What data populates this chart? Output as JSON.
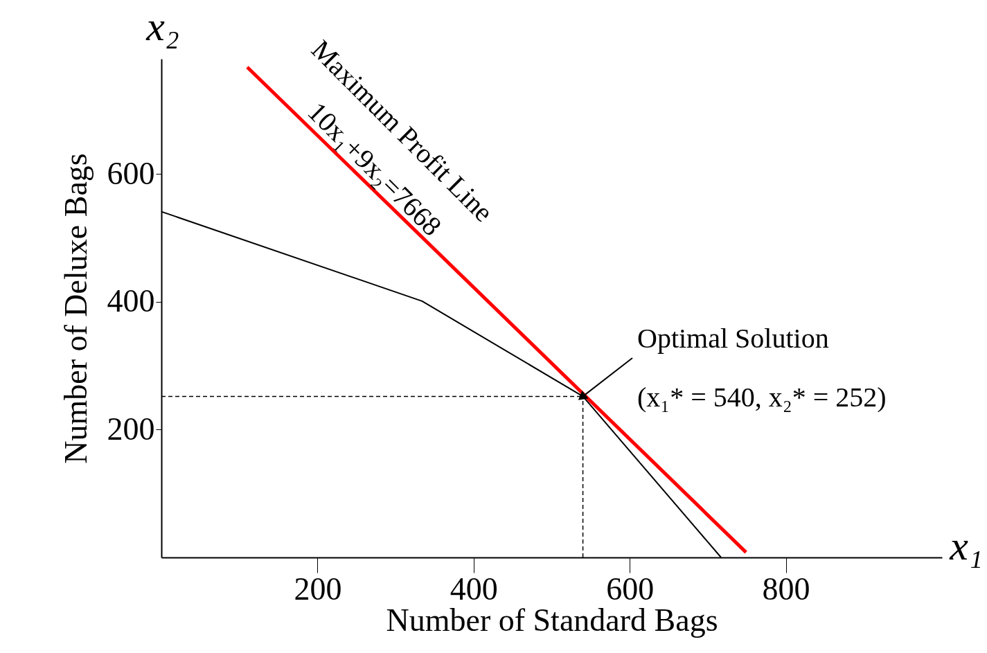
{
  "chart_data": {
    "type": "line",
    "xlabel": "Number of Standard Bags",
    "ylabel": "Number of Deluxe Bags",
    "xlim": [
      0,
      1000
    ],
    "ylim": [
      0,
      780
    ],
    "xticks": [
      200,
      400,
      600,
      800
    ],
    "yticks": [
      200,
      400,
      600
    ],
    "grid": false,
    "marker": "none",
    "series": [
      {
        "color": "#000000",
        "line_style": "solid",
        "x": [
          0,
          334,
          540,
          717
        ],
        "values": [
          541,
          401,
          252,
          0
        ]
      },
      {
        "color": "#ff0000",
        "line_style": "solid",
        "x": [
          110,
          749
        ],
        "values": [
          767,
          8
        ]
      },
      {
        "color": "#000000",
        "line_style": "dashed",
        "x": [
          0,
          540
        ],
        "values": [
          252,
          252
        ]
      },
      {
        "color": "#000000",
        "line_style": "dashed",
        "x": [
          540,
          540
        ],
        "values": [
          0,
          252
        ]
      }
    ],
    "annotations": [
      "x₂",
      "x₁",
      "Maximum Profit Line",
      "10x₁+9x₂=7668",
      {
        "text": "Optimal Solution",
        "x": 540,
        "y": 252
      },
      "(x₁* = 540,  x₂* = 252)"
    ]
  }
}
